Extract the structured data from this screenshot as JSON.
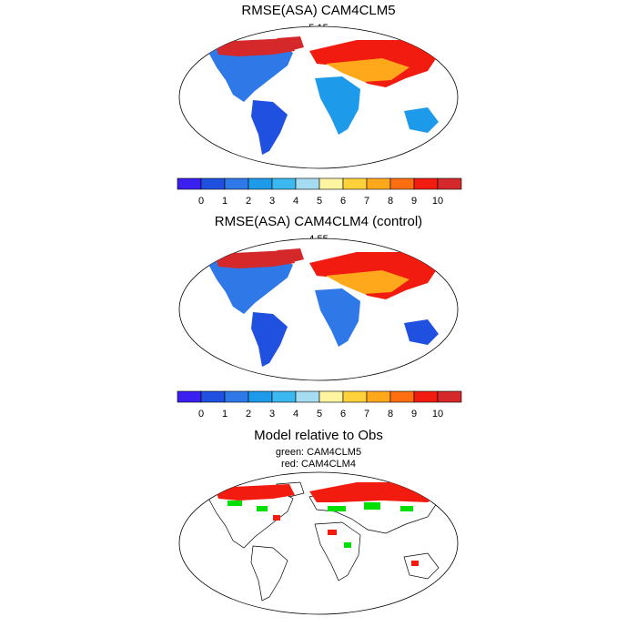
{
  "panels": [
    {
      "title": "RMSE(ASA) CAM4CLM5",
      "value": "5.15"
    },
    {
      "title": "RMSE(ASA) CAM4CLM4 (control)",
      "value": "4.55"
    },
    {
      "title": "Model relative to Obs",
      "legend_green": "green: CAM4CLM5",
      "legend_red": "red: CAM4CLM4"
    }
  ],
  "colorbar": {
    "labels": [
      "0",
      "1",
      "2",
      "3",
      "4",
      "5",
      "6",
      "7",
      "8",
      "9",
      "10"
    ],
    "colors": [
      "#3a1ff0",
      "#2050e0",
      "#2f78e8",
      "#1e9aea",
      "#3cb8f0",
      "#a6dcf2",
      "#fff5a0",
      "#ffd23c",
      "#ffa81c",
      "#ff6f12",
      "#f21b10",
      "#d4282a"
    ]
  }
}
